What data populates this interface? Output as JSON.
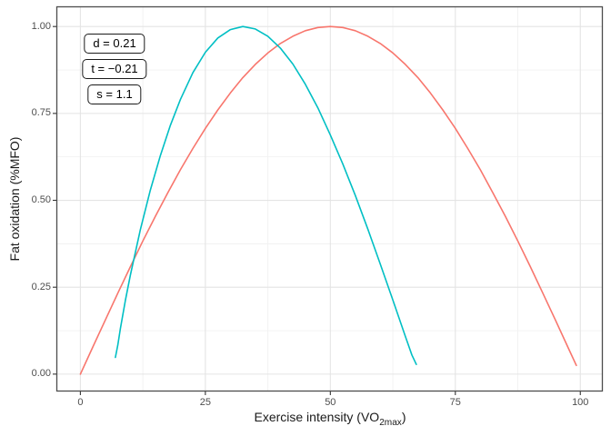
{
  "figure": {
    "y_axis_title": "Fat oxidation (%MFO)",
    "x_axis_title_pre": "Exercise intensity (VO",
    "x_axis_title_sub": "2max",
    "x_axis_title_post": ")"
  },
  "annotations": [
    {
      "id": "d",
      "label": "d = 0.21"
    },
    {
      "id": "t",
      "label": "t = −0.21"
    },
    {
      "id": "s",
      "label": "s = 1.1"
    }
  ],
  "chart_data": {
    "type": "line",
    "title": "",
    "xlabel": "Exercise intensity (VO2max)",
    "ylabel": "Fat oxidation (%MFO)",
    "xlim": [
      -4.8,
      104.5
    ],
    "ylim": [
      -0.05,
      1.058
    ],
    "grid": "major and minor, light grey on white panel, dark grey panel border",
    "legend": "none",
    "parameters": {
      "d": 0.21,
      "t": -0.21,
      "s": 1.1
    },
    "x_ticks": {
      "values": [
        0,
        25,
        50,
        75,
        100
      ],
      "labels": [
        "0",
        "25",
        "50",
        "75",
        "100"
      ]
    },
    "y_ticks": {
      "values": [
        0,
        0.25,
        0.5,
        0.75,
        1.0
      ],
      "labels": [
        "0.00",
        "0.25",
        "0.50",
        "0.75",
        "1.00"
      ]
    },
    "x_minor_ticks": [
      12.5,
      37.5,
      62.5,
      87.5
    ],
    "y_minor_ticks": [
      0.125,
      0.375,
      0.625,
      0.875
    ],
    "series": [
      {
        "name": "red-curve",
        "color": "#F8766D",
        "peak_x": 50,
        "points": [
          [
            0,
            0
          ],
          [
            2.5,
            0.078
          ],
          [
            5,
            0.156
          ],
          [
            7.5,
            0.233
          ],
          [
            10,
            0.309
          ],
          [
            12.5,
            0.383
          ],
          [
            15,
            0.454
          ],
          [
            17.5,
            0.522
          ],
          [
            20,
            0.588
          ],
          [
            22.5,
            0.649
          ],
          [
            25,
            0.707
          ],
          [
            27.5,
            0.76
          ],
          [
            30,
            0.809
          ],
          [
            32.5,
            0.853
          ],
          [
            35,
            0.891
          ],
          [
            37.5,
            0.924
          ],
          [
            40,
            0.951
          ],
          [
            42.5,
            0.972
          ],
          [
            45,
            0.988
          ],
          [
            47.5,
            0.997
          ],
          [
            50,
            1.0
          ],
          [
            52.5,
            0.997
          ],
          [
            55,
            0.988
          ],
          [
            57.5,
            0.972
          ],
          [
            60,
            0.951
          ],
          [
            62.5,
            0.924
          ],
          [
            65,
            0.891
          ],
          [
            67.5,
            0.853
          ],
          [
            70,
            0.809
          ],
          [
            72.5,
            0.76
          ],
          [
            75,
            0.707
          ],
          [
            77.5,
            0.649
          ],
          [
            80,
            0.588
          ],
          [
            82.5,
            0.522
          ],
          [
            85,
            0.454
          ],
          [
            87.5,
            0.383
          ],
          [
            90,
            0.309
          ],
          [
            92.5,
            0.233
          ],
          [
            95,
            0.156
          ],
          [
            97.5,
            0.078
          ],
          [
            99.2,
            0.025
          ]
        ]
      },
      {
        "name": "teal-curve",
        "color": "#00BFC4",
        "peak_x": 33,
        "points": [
          [
            7,
            0.048
          ],
          [
            7.5,
            0.084
          ],
          [
            8,
            0.131
          ],
          [
            9,
            0.212
          ],
          [
            10,
            0.285
          ],
          [
            12,
            0.416
          ],
          [
            14,
            0.53
          ],
          [
            16,
            0.629
          ],
          [
            18,
            0.716
          ],
          [
            20,
            0.79
          ],
          [
            22.5,
            0.867
          ],
          [
            25,
            0.926
          ],
          [
            27.5,
            0.967
          ],
          [
            30,
            0.991
          ],
          [
            32.5,
            1.0
          ],
          [
            35,
            0.993
          ],
          [
            37.5,
            0.972
          ],
          [
            40,
            0.938
          ],
          [
            42.5,
            0.892
          ],
          [
            45,
            0.834
          ],
          [
            47.5,
            0.766
          ],
          [
            50,
            0.688
          ],
          [
            52.5,
            0.604
          ],
          [
            55,
            0.514
          ],
          [
            57.5,
            0.417
          ],
          [
            60,
            0.316
          ],
          [
            62.5,
            0.213
          ],
          [
            65,
            0.109
          ],
          [
            66.3,
            0.055
          ],
          [
            67.2,
            0.028
          ]
        ]
      }
    ],
    "palette": {
      "grid_major": "#E4E4E4",
      "grid_minor": "#F1F1F1",
      "panel_border": "#4D4D4D",
      "tick_mark": "#333333",
      "tick_text": "#4D4D4D",
      "panel_bg": "#FFFFFF"
    }
  }
}
